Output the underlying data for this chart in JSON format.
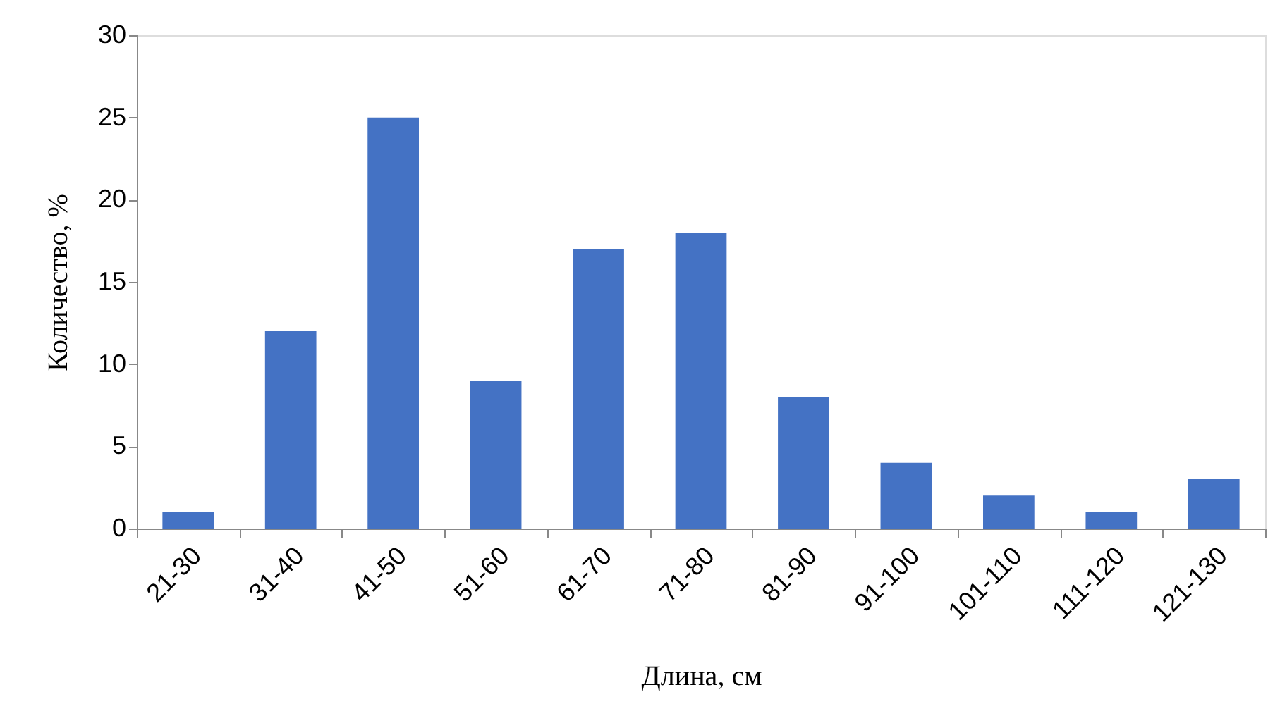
{
  "chart_data": {
    "type": "bar",
    "xlabel": "Длина, см",
    "ylabel": "Количество, %",
    "categories": [
      "21-30",
      "31-40",
      "41-50",
      "51-60",
      "61-70",
      "71-80",
      "81-90",
      "91-100",
      "101-110",
      "111-120",
      "121-130"
    ],
    "values": [
      1,
      12,
      25,
      9,
      17,
      18,
      8,
      4,
      2,
      1,
      3
    ],
    "color": "#4472c4",
    "ylim": [
      0,
      30
    ],
    "yticks": [
      0,
      5,
      10,
      15,
      20,
      25,
      30
    ],
    "grid": false
  }
}
